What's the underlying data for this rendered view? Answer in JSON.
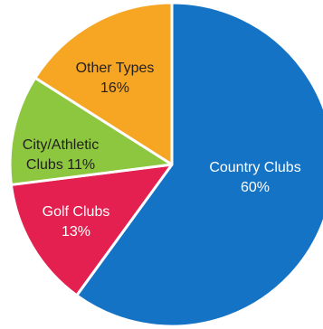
{
  "chart_data": {
    "type": "pie",
    "title": "",
    "start_angle_deg": 0,
    "direction": "clockwise",
    "slices": [
      {
        "label_lines": [
          "Country Clubs",
          "60%"
        ],
        "value": 60,
        "color": "#1473c4",
        "label_color": "#ffffff"
      },
      {
        "label_lines": [
          "Golf Clubs",
          "13%"
        ],
        "value": 13,
        "color": "#e3204f",
        "label_color": "#ffffff"
      },
      {
        "label_lines": [
          "City/Athletic",
          "Clubs 11%"
        ],
        "value": 11,
        "color": "#8dc63f",
        "label_color": "#231f20"
      },
      {
        "label_lines": [
          "Other Types",
          "16%"
        ],
        "value": 16,
        "color": "#f6a623",
        "label_color": "#231f20"
      }
    ]
  }
}
